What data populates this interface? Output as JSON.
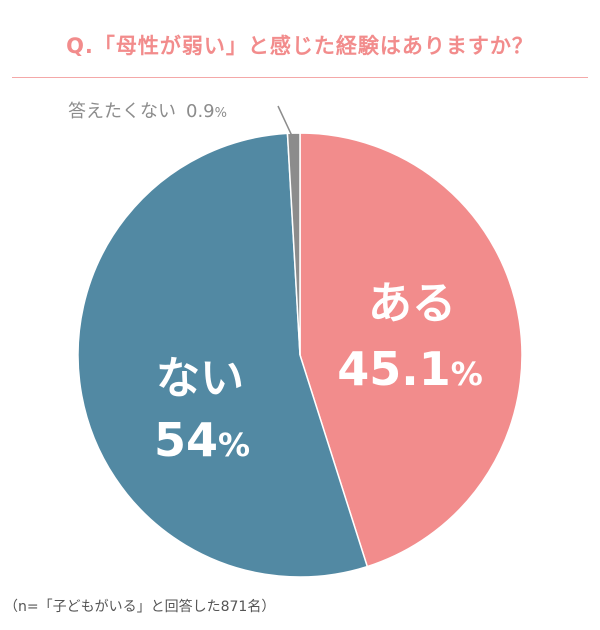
{
  "title": "Q.「母性が弱い」と感じた経験はありますか？",
  "note": "（n=「子どもがいる」と回答した871名）",
  "colors": {
    "title": "#f28c8c",
    "rule": "#f4a8a8",
    "aru": "#f28c8c",
    "nai": "#5289a3",
    "noanswer": "#8c8c8c"
  },
  "chart_data": {
    "type": "pie",
    "slices": [
      {
        "label": "ある",
        "value": 45.1,
        "value_text": "45.1",
        "unit": "%",
        "color": "#f28c8c"
      },
      {
        "label": "ない",
        "value": 54,
        "value_text": "54",
        "unit": "%",
        "color": "#5289a3"
      },
      {
        "label": "答えたくない",
        "value": 0.9,
        "value_text": "0.9",
        "unit": "%",
        "color": "#8c8c8c"
      }
    ]
  }
}
